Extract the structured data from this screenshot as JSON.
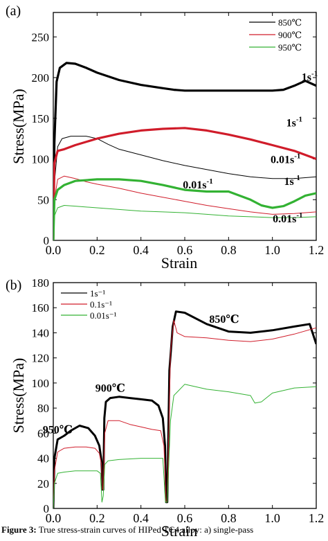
{
  "caption": {
    "prefix": "Figure 3:",
    "text": "True stress-strain curves of HIPed TC4 alloy: a) single-pass"
  },
  "chart_data": [
    {
      "type": "line",
      "panel_label": "(a)",
      "xlabel": "Strain",
      "ylabel": "Stress(MPa)",
      "xlim": [
        0,
        1.2
      ],
      "ylim": [
        0,
        280
      ],
      "xticks": [
        "0.0",
        "0.2",
        "0.4",
        "0.6",
        "0.8",
        "1.0",
        "1.2"
      ],
      "yticks": [
        "0",
        "50",
        "100",
        "150",
        "200",
        "250"
      ],
      "legend_position": "top-right",
      "legend": [
        {
          "label": "850℃",
          "color": "#000000"
        },
        {
          "label": "900℃",
          "color": "#d01c2a"
        },
        {
          "label": "950℃",
          "color": "#33b233"
        }
      ],
      "series": [
        {
          "name": "850℃",
          "rate": "1s⁻¹",
          "color": "#000000",
          "width": 3.2,
          "points": [
            [
              0,
              0
            ],
            [
              0.005,
              120
            ],
            [
              0.015,
              195
            ],
            [
              0.03,
              212
            ],
            [
              0.06,
              218
            ],
            [
              0.1,
              217
            ],
            [
              0.15,
              212
            ],
            [
              0.2,
              206
            ],
            [
              0.3,
              197
            ],
            [
              0.4,
              191
            ],
            [
              0.5,
              187
            ],
            [
              0.55,
              185
            ],
            [
              0.6,
              184
            ],
            [
              0.7,
              184
            ],
            [
              0.8,
              184
            ],
            [
              0.9,
              184
            ],
            [
              1.0,
              184
            ],
            [
              1.05,
              185
            ],
            [
              1.1,
              190
            ],
            [
              1.15,
              196
            ],
            [
              1.2,
              190
            ]
          ]
        },
        {
          "name": "850℃",
          "rate": "0.01s⁻¹",
          "color": "#000000",
          "width": 1,
          "points": [
            [
              0,
              0
            ],
            [
              0.005,
              70
            ],
            [
              0.02,
              115
            ],
            [
              0.04,
              125
            ],
            [
              0.08,
              128
            ],
            [
              0.15,
              128
            ],
            [
              0.2,
              125
            ],
            [
              0.25,
              118
            ],
            [
              0.3,
              112
            ],
            [
              0.4,
              105
            ],
            [
              0.5,
              98
            ],
            [
              0.6,
              92
            ],
            [
              0.7,
              87
            ],
            [
              0.8,
              82
            ],
            [
              0.9,
              78
            ],
            [
              1.0,
              76
            ],
            [
              1.1,
              76
            ],
            [
              1.2,
              78
            ]
          ]
        },
        {
          "name": "900℃",
          "rate": "1s⁻¹",
          "color": "#d01c2a",
          "width": 3.2,
          "points": [
            [
              0,
              0
            ],
            [
              0.005,
              95
            ],
            [
              0.02,
              110
            ],
            [
              0.05,
              112
            ],
            [
              0.1,
              117
            ],
            [
              0.2,
              125
            ],
            [
              0.3,
              131
            ],
            [
              0.4,
              135
            ],
            [
              0.5,
              137
            ],
            [
              0.6,
              138
            ],
            [
              0.7,
              135
            ],
            [
              0.8,
              130
            ],
            [
              0.9,
              124
            ],
            [
              1.0,
              117
            ],
            [
              1.1,
              110
            ],
            [
              1.15,
              105
            ],
            [
              1.2,
              100
            ]
          ]
        },
        {
          "name": "900℃",
          "rate": "0.01s⁻¹",
          "color": "#d01c2a",
          "width": 1,
          "points": [
            [
              0,
              0
            ],
            [
              0.005,
              50
            ],
            [
              0.02,
              75
            ],
            [
              0.05,
              79
            ],
            [
              0.1,
              76
            ],
            [
              0.15,
              72
            ],
            [
              0.2,
              69
            ],
            [
              0.3,
              64
            ],
            [
              0.4,
              58
            ],
            [
              0.5,
              53
            ],
            [
              0.6,
              48
            ],
            [
              0.7,
              43
            ],
            [
              0.8,
              39
            ],
            [
              0.9,
              35
            ],
            [
              1.0,
              32
            ],
            [
              1.1,
              33
            ],
            [
              1.2,
              35
            ]
          ]
        },
        {
          "name": "950℃",
          "rate": "1s⁻¹",
          "color": "#33b233",
          "width": 3.2,
          "points": [
            [
              0,
              0
            ],
            [
              0.005,
              50
            ],
            [
              0.02,
              62
            ],
            [
              0.05,
              68
            ],
            [
              0.1,
              73
            ],
            [
              0.2,
              75
            ],
            [
              0.3,
              75
            ],
            [
              0.4,
              73
            ],
            [
              0.5,
              68
            ],
            [
              0.6,
              62
            ],
            [
              0.7,
              60
            ],
            [
              0.8,
              60
            ],
            [
              0.9,
              50
            ],
            [
              0.95,
              43
            ],
            [
              1.0,
              40
            ],
            [
              1.05,
              42
            ],
            [
              1.1,
              48
            ],
            [
              1.15,
              55
            ],
            [
              1.2,
              58
            ]
          ]
        },
        {
          "name": "950℃",
          "rate": "0.01s⁻¹",
          "color": "#33b233",
          "width": 1,
          "points": [
            [
              0,
              0
            ],
            [
              0.005,
              30
            ],
            [
              0.02,
              40
            ],
            [
              0.05,
              43
            ],
            [
              0.1,
              42
            ],
            [
              0.2,
              40
            ],
            [
              0.3,
              38
            ],
            [
              0.4,
              36
            ],
            [
              0.5,
              35
            ],
            [
              0.6,
              34
            ],
            [
              0.7,
              32
            ],
            [
              0.8,
              30
            ],
            [
              0.9,
              29
            ],
            [
              1.0,
              28
            ],
            [
              1.1,
              28
            ],
            [
              1.2,
              29
            ]
          ]
        }
      ],
      "annotations": [
        {
          "text": "1s",
          "sup": "-1",
          "at": [
            1.17,
            196
          ]
        },
        {
          "text": "1s",
          "sup": "-1",
          "at": [
            1.1,
            140
          ]
        },
        {
          "text": "0.01s",
          "sup": "-1",
          "at": [
            1.06,
            95
          ]
        },
        {
          "text": "0.01s",
          "sup": "-1",
          "at": [
            0.66,
            64
          ]
        },
        {
          "text": "1s",
          "sup": "-1",
          "at": [
            1.09,
            68
          ]
        },
        {
          "text": "0.01s",
          "sup": "-1",
          "at": [
            1.07,
            22
          ]
        }
      ]
    },
    {
      "type": "line",
      "panel_label": "(b)",
      "xlabel": "Strain",
      "ylabel": "Stress(MPa)",
      "xlim": [
        0,
        1.2
      ],
      "ylim": [
        0,
        180
      ],
      "xticks": [
        "0.0",
        "0.2",
        "0.4",
        "0.6",
        "0.8",
        "1.0",
        "1.2"
      ],
      "yticks": [
        "0",
        "20",
        "40",
        "60",
        "80",
        "100",
        "120",
        "140",
        "160",
        "180"
      ],
      "legend_position": "top-left",
      "legend": [
        {
          "label": "1s⁻¹",
          "color": "#000000"
        },
        {
          "label": "0.1s⁻¹",
          "color": "#d01c2a"
        },
        {
          "label": "0.01s⁻¹",
          "color": "#33b233"
        }
      ],
      "series": [
        {
          "name": "1s⁻¹",
          "color": "#000000",
          "width": 3,
          "points": [
            [
              0,
              0
            ],
            [
              0.005,
              40
            ],
            [
              0.02,
              55
            ],
            [
              0.05,
              58
            ],
            [
              0.08,
              62
            ],
            [
              0.12,
              66
            ],
            [
              0.16,
              64
            ],
            [
              0.19,
              58
            ],
            [
              0.21,
              50
            ],
            [
              0.22,
              38
            ],
            [
              0.225,
              15
            ],
            [
              0.228,
              15
            ],
            [
              0.233,
              72
            ],
            [
              0.24,
              85
            ],
            [
              0.26,
              88
            ],
            [
              0.3,
              89
            ],
            [
              0.35,
              88
            ],
            [
              0.4,
              87
            ],
            [
              0.45,
              86
            ],
            [
              0.48,
              82
            ],
            [
              0.5,
              72
            ],
            [
              0.51,
              50
            ],
            [
              0.515,
              5
            ],
            [
              0.52,
              5
            ],
            [
              0.53,
              110
            ],
            [
              0.545,
              145
            ],
            [
              0.56,
              157
            ],
            [
              0.6,
              156
            ],
            [
              0.7,
              147
            ],
            [
              0.8,
              141
            ],
            [
              0.9,
              140
            ],
            [
              1.0,
              142
            ],
            [
              1.1,
              145
            ],
            [
              1.17,
              147
            ],
            [
              1.2,
              131
            ]
          ]
        },
        {
          "name": "0.1s⁻¹",
          "color": "#d01c2a",
          "width": 1,
          "points": [
            [
              0,
              0
            ],
            [
              0.005,
              30
            ],
            [
              0.02,
              45
            ],
            [
              0.05,
              48
            ],
            [
              0.1,
              49
            ],
            [
              0.15,
              49
            ],
            [
              0.19,
              48
            ],
            [
              0.21,
              44
            ],
            [
              0.22,
              35
            ],
            [
              0.225,
              15
            ],
            [
              0.228,
              15
            ],
            [
              0.235,
              60
            ],
            [
              0.25,
              70
            ],
            [
              0.3,
              70
            ],
            [
              0.35,
              67
            ],
            [
              0.4,
              65
            ],
            [
              0.45,
              63
            ],
            [
              0.49,
              62
            ],
            [
              0.505,
              50
            ],
            [
              0.515,
              5
            ],
            [
              0.52,
              5
            ],
            [
              0.535,
              125
            ],
            [
              0.55,
              150
            ],
            [
              0.565,
              140
            ],
            [
              0.6,
              137
            ],
            [
              0.7,
              136
            ],
            [
              0.8,
              134
            ],
            [
              0.9,
              133
            ],
            [
              1.0,
              135
            ],
            [
              1.1,
              139
            ],
            [
              1.2,
              144
            ]
          ]
        },
        {
          "name": "0.01s⁻¹",
          "color": "#33b233",
          "width": 1,
          "points": [
            [
              0,
              0
            ],
            [
              0.005,
              20
            ],
            [
              0.02,
              28
            ],
            [
              0.05,
              29
            ],
            [
              0.1,
              30
            ],
            [
              0.15,
              30
            ],
            [
              0.2,
              30
            ],
            [
              0.215,
              28
            ],
            [
              0.222,
              5
            ],
            [
              0.228,
              10
            ],
            [
              0.235,
              35
            ],
            [
              0.25,
              38
            ],
            [
              0.3,
              39
            ],
            [
              0.4,
              40
            ],
            [
              0.45,
              40
            ],
            [
              0.5,
              40
            ],
            [
              0.512,
              5
            ],
            [
              0.52,
              5
            ],
            [
              0.535,
              70
            ],
            [
              0.55,
              90
            ],
            [
              0.6,
              99
            ],
            [
              0.7,
              95
            ],
            [
              0.8,
              93
            ],
            [
              0.9,
              90
            ],
            [
              0.92,
              84
            ],
            [
              0.95,
              85
            ],
            [
              1.0,
              92
            ],
            [
              1.1,
              96
            ],
            [
              1.2,
              97
            ]
          ]
        }
      ],
      "annotations": [
        {
          "text": "950℃",
          "at": [
            0.02,
            60
          ]
        },
        {
          "text": "900℃",
          "at": [
            0.26,
            93
          ]
        },
        {
          "text": "850℃",
          "at": [
            0.78,
            148
          ]
        }
      ]
    }
  ]
}
